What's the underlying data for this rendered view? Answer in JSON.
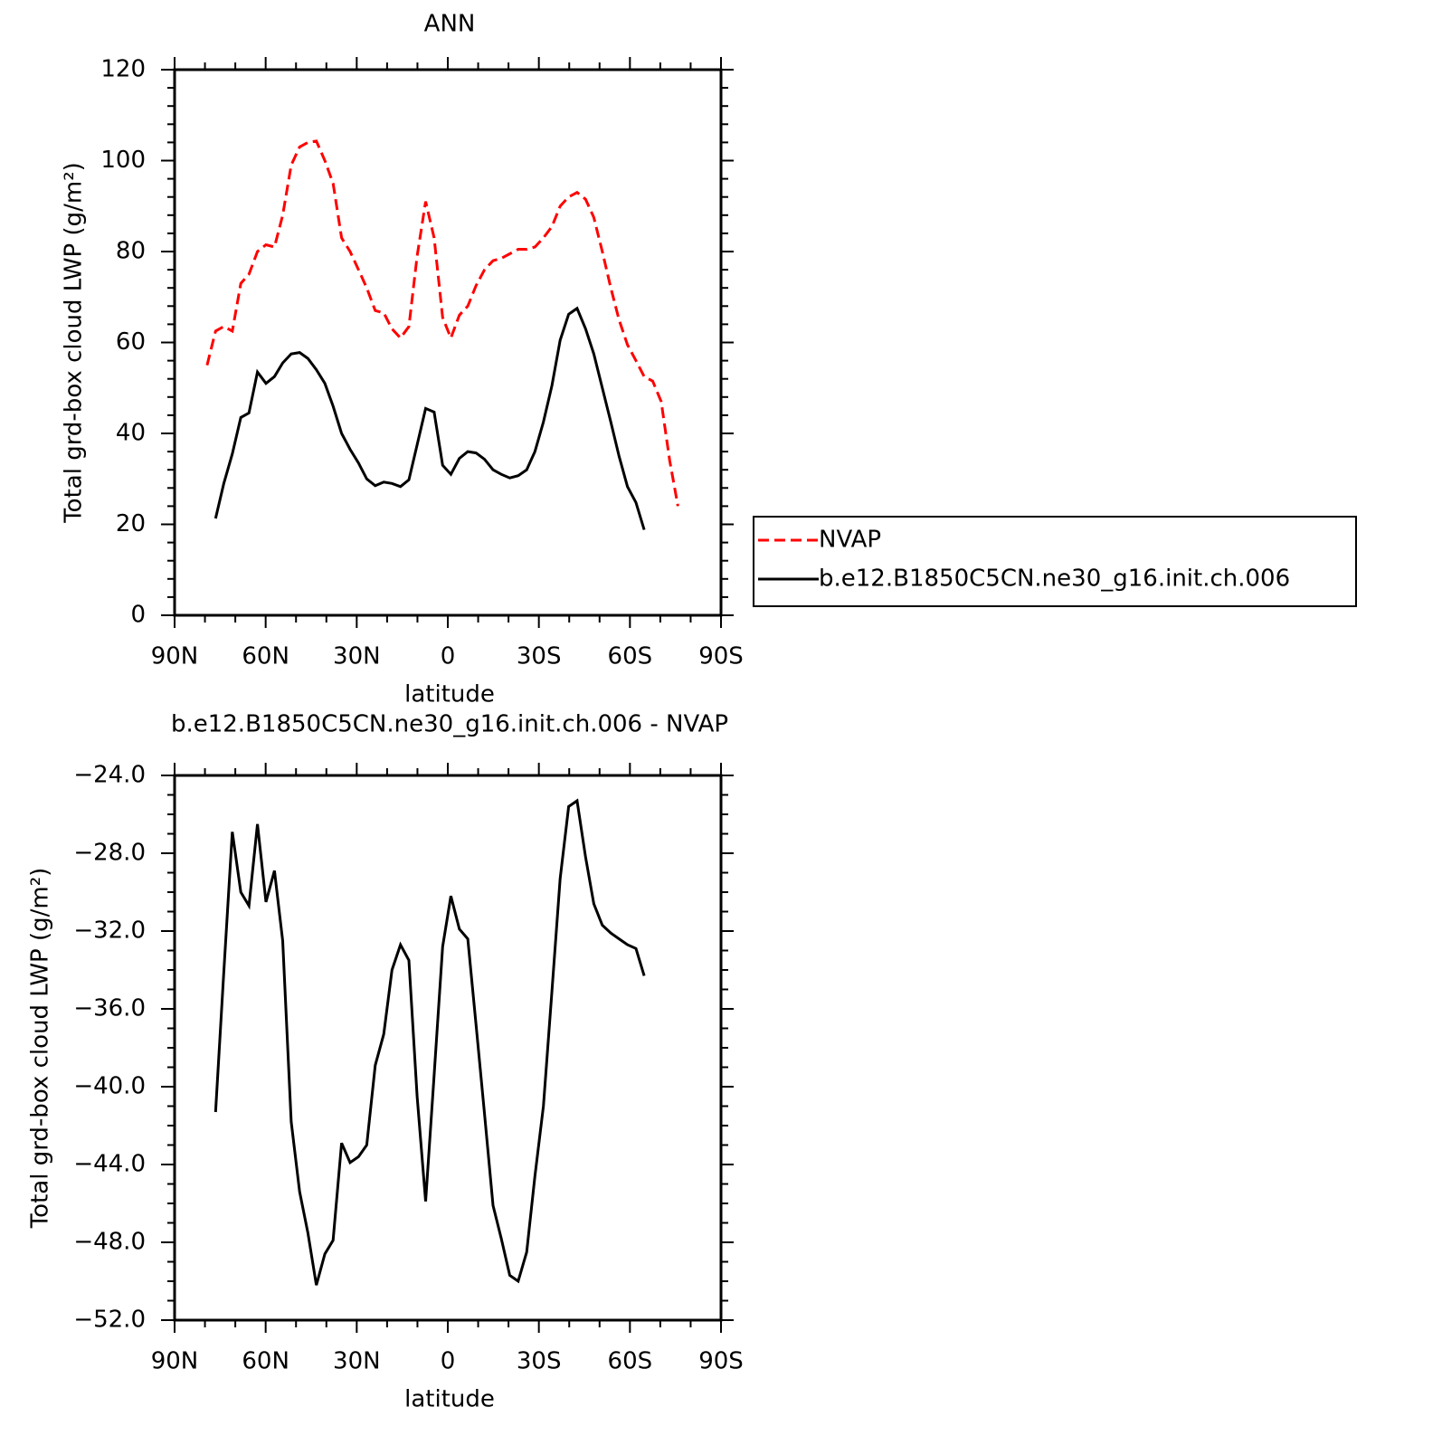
{
  "chart_data": [
    {
      "type": "line",
      "title": "ANN",
      "xlabel": "latitude",
      "ylabel": "Total grd-box cloud LWP (g/m²)",
      "xlim": [
        90,
        -90
      ],
      "ylim": [
        0,
        120
      ],
      "xticks": [
        {
          "value": 90,
          "label": "90N"
        },
        {
          "value": 60,
          "label": "60N"
        },
        {
          "value": 30,
          "label": "30N"
        },
        0,
        {
          "value": -30,
          "label": "30S"
        },
        {
          "value": -60,
          "label": "60S"
        },
        {
          "value": -90,
          "label": "90S"
        }
      ],
      "yticks": [
        0,
        20,
        40,
        60,
        80,
        100,
        120
      ],
      "legend": "right",
      "x": [
        79.3,
        76.5,
        73.8,
        71.0,
        68.2,
        65.5,
        62.7,
        59.9,
        57.1,
        54.4,
        51.6,
        48.8,
        46.1,
        43.3,
        40.5,
        37.8,
        35.0,
        32.2,
        29.4,
        26.7,
        23.9,
        21.1,
        18.4,
        15.6,
        12.8,
        10.1,
        7.3,
        4.5,
        1.7,
        -1.0,
        -3.8,
        -6.6,
        -9.3,
        -12.1,
        -14.9,
        -17.6,
        -20.4,
        -23.2,
        -26.0,
        -28.7,
        -31.5,
        -34.3,
        -37.0,
        -39.8,
        -42.6,
        -45.4,
        -48.1,
        -50.9,
        -53.7,
        -56.4,
        -59.2,
        -62.0,
        -64.7,
        -67.5,
        -70.3,
        -73.1,
        -75.8
      ],
      "series": [
        {
          "name": "NVAP",
          "color": "#ff0000",
          "style": "dashed",
          "values": [
            55,
            62.5,
            63.5,
            62.5,
            73,
            75,
            80,
            81.5,
            81,
            88,
            99,
            103,
            104,
            104.3,
            100,
            95,
            83,
            80,
            76,
            72,
            67,
            66.5,
            63,
            61,
            63.5,
            79,
            91,
            83,
            65.5,
            61,
            66,
            68,
            72.5,
            76,
            78,
            78.5,
            79.5,
            80.5,
            80.5,
            81,
            83,
            85.5,
            90,
            92,
            93,
            91.5,
            87.5,
            80,
            72,
            65,
            59.5,
            56,
            52.5,
            51.5,
            47,
            34,
            24
          ]
        },
        {
          "name": "b.e12.B1850C5CN.ne30_g16.init.ch.006",
          "color": "#000000",
          "style": "solid",
          "values": [
            null,
            21.3,
            29,
            35.5,
            43.5,
            44.5,
            53.5,
            51,
            52.5,
            55.5,
            57.5,
            57.8,
            56.5,
            54,
            51,
            46,
            40,
            36.5,
            33.5,
            30,
            28.5,
            29.3,
            29,
            28.3,
            29.8,
            37.5,
            45.5,
            44.7,
            33,
            31,
            34.5,
            36,
            35.7,
            34.3,
            32,
            31,
            30.2,
            30.7,
            32,
            36,
            42.5,
            50.5,
            60.5,
            66.2,
            67.5,
            63,
            57.5,
            50,
            42.5,
            35,
            28.3,
            24.8,
            18.8,
            null,
            null,
            null,
            null
          ]
        }
      ]
    },
    {
      "type": "line",
      "title": "b.e12.B1850C5CN.ne30_g16.init.ch.006 - NVAP",
      "xlabel": "latitude",
      "ylabel": "Total grd-box cloud LWP (g/m²)",
      "xlim": [
        90,
        -90
      ],
      "ylim": [
        -52,
        -24
      ],
      "xticks": [
        {
          "value": 90,
          "label": "90N"
        },
        {
          "value": 60,
          "label": "60N"
        },
        {
          "value": 30,
          "label": "30N"
        },
        0,
        {
          "value": -30,
          "label": "30S"
        },
        {
          "value": -60,
          "label": "60S"
        },
        {
          "value": -90,
          "label": "90S"
        }
      ],
      "yticks": [
        {
          "value": -52,
          "label": "−52.0"
        },
        {
          "value": -48,
          "label": "−48.0"
        },
        {
          "value": -44,
          "label": "−44.0"
        },
        {
          "value": -40,
          "label": "−40.0"
        },
        {
          "value": -36,
          "label": "−36.0"
        },
        {
          "value": -32,
          "label": "−32.0"
        },
        {
          "value": -28,
          "label": "−28.0"
        },
        {
          "value": -24,
          "label": "−24.0"
        }
      ],
      "x": [
        76.5,
        73.8,
        71.0,
        68.2,
        65.5,
        62.7,
        59.9,
        57.1,
        54.4,
        51.6,
        48.8,
        46.1,
        43.3,
        40.5,
        37.8,
        35.0,
        32.2,
        29.4,
        26.7,
        23.9,
        21.1,
        18.4,
        15.6,
        12.8,
        10.1,
        7.3,
        4.5,
        1.7,
        -1.0,
        -3.8,
        -6.6,
        -9.3,
        -12.1,
        -14.9,
        -17.6,
        -20.4,
        -23.2,
        -26.0,
        -28.7,
        -31.5,
        -34.3,
        -37.0,
        -39.8,
        -42.6,
        -45.4,
        -48.1,
        -50.9,
        -53.7,
        -56.4,
        -59.2,
        -62.0,
        -64.7
      ],
      "series": [
        {
          "color": "#000000",
          "style": "solid",
          "values": [
            -41.3,
            -34.1,
            -26.9,
            -30.0,
            -30.7,
            -26.5,
            -30.5,
            -28.9,
            -32.5,
            -41.8,
            -45.4,
            -47.5,
            -50.2,
            -48.6,
            -47.9,
            -42.9,
            -43.9,
            -43.6,
            -43.0,
            -38.9,
            -37.3,
            -34.0,
            -32.7,
            -33.5,
            -40.5,
            -45.9,
            -39.4,
            -32.8,
            -30.2,
            -31.9,
            -32.4,
            -36.8,
            -41.4,
            -46.1,
            -47.8,
            -49.7,
            -50.0,
            -48.5,
            -44.6,
            -41.0,
            -35.1,
            -29.3,
            -25.6,
            -25.3,
            -28.2,
            -30.6,
            -31.7,
            -32.1,
            -32.4,
            -32.7,
            -32.9,
            -34.3
          ]
        }
      ]
    }
  ]
}
